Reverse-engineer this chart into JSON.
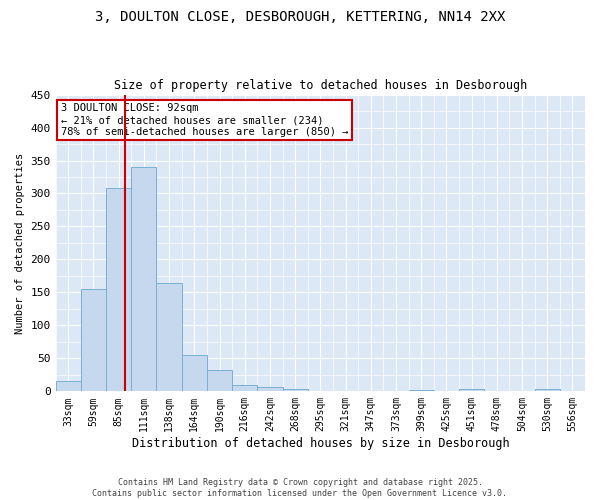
{
  "title_line1": "3, DOULTON CLOSE, DESBOROUGH, KETTERING, NN14 2XX",
  "title_line2": "Size of property relative to detached houses in Desborough",
  "xlabel": "Distribution of detached houses by size in Desborough",
  "ylabel": "Number of detached properties",
  "bar_color": "#c5d8ed",
  "bar_edgecolor": "#7aafd4",
  "categories": [
    "33sqm",
    "59sqm",
    "85sqm",
    "111sqm",
    "138sqm",
    "164sqm",
    "190sqm",
    "216sqm",
    "242sqm",
    "268sqm",
    "295sqm",
    "321sqm",
    "347sqm",
    "373sqm",
    "399sqm",
    "425sqm",
    "451sqm",
    "478sqm",
    "504sqm",
    "530sqm",
    "556sqm"
  ],
  "values": [
    15,
    155,
    308,
    340,
    165,
    55,
    32,
    10,
    7,
    4,
    1,
    0,
    0,
    0,
    2,
    0,
    4,
    0,
    0,
    4,
    0
  ],
  "ylim": [
    0,
    450
  ],
  "yticks": [
    0,
    50,
    100,
    150,
    200,
    250,
    300,
    350,
    400,
    450
  ],
  "vline_color": "#cc0000",
  "vline_pos": 2.27,
  "annotation_title": "3 DOULTON CLOSE: 92sqm",
  "annotation_line1": "← 21% of detached houses are smaller (234)",
  "annotation_line2": "78% of semi-detached houses are larger (850) →",
  "annotation_box_edgecolor": "#cc0000",
  "footer_line1": "Contains HM Land Registry data © Crown copyright and database right 2025.",
  "footer_line2": "Contains public sector information licensed under the Open Government Licence v3.0.",
  "fig_bg_color": "#ffffff",
  "plot_bg_color": "#dce8f5"
}
